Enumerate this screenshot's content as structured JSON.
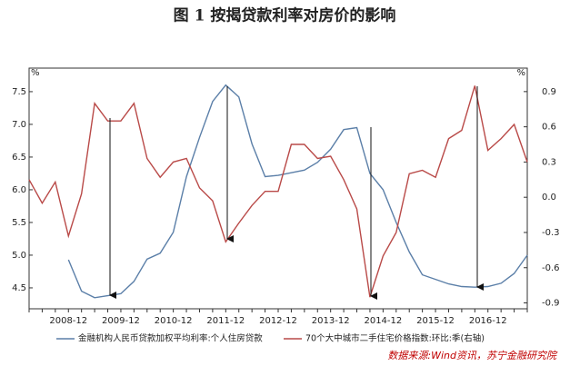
{
  "chart_data": {
    "type": "line",
    "title": "图 1  按揭贷款利率对房价的影响",
    "y_unit": "%",
    "y2_unit": "%",
    "source": "数据来源:Wind资讯，苏宁金融研究院",
    "categories": [
      null,
      null,
      null,
      "2008-12",
      null,
      null,
      null,
      "2009-12",
      null,
      null,
      null,
      "2010-12",
      null,
      null,
      null,
      "2011-12",
      null,
      null,
      null,
      "2012-12",
      null,
      null,
      null,
      "2013-12",
      null,
      null,
      null,
      "2014-12",
      null,
      null,
      null,
      "2015-12",
      null,
      null,
      null,
      "2016-12",
      null,
      null,
      null
    ],
    "ylim": [
      4.18,
      7.86
    ],
    "yticks": [
      4.5,
      {
        "value": 5,
        "label": "5.0"
      },
      5.5,
      {
        "value": 6,
        "label": "6.0"
      },
      6.5,
      {
        "value": 7,
        "label": "7.0"
      },
      7.5
    ],
    "y2lim": [
      -0.95,
      1.1
    ],
    "y2ticks": [
      -0.9,
      -0.6,
      -0.3,
      {
        "value": 0,
        "label": "0.0"
      },
      0.3,
      0.6,
      0.9
    ],
    "series": [
      {
        "name": "金融机构人民币贷款加权平均利率:个人住房贷款",
        "color": "#5b7fa8",
        "axis": "y",
        "values": [
          null,
          null,
          null,
          4.93,
          4.45,
          4.35,
          4.38,
          4.41,
          4.6,
          4.94,
          5.03,
          5.35,
          6.2,
          6.8,
          7.35,
          7.6,
          7.42,
          6.7,
          6.2,
          6.22,
          6.26,
          6.3,
          6.42,
          6.62,
          6.92,
          6.95,
          6.25,
          6.0,
          5.5,
          5.05,
          4.7,
          4.63,
          4.56,
          4.52,
          4.51,
          4.52,
          4.57,
          4.72,
          5.0
        ]
      },
      {
        "name": "70个大中城市二手住宅价格指数:环比:季(右轴)",
        "color": "#b94a48",
        "axis": "y2",
        "values": [
          0.15,
          -0.05,
          0.13,
          -0.33,
          0.03,
          0.8,
          0.65,
          0.65,
          0.8,
          0.33,
          0.17,
          0.3,
          0.33,
          0.08,
          -0.03,
          -0.38,
          -0.22,
          -0.07,
          0.05,
          0.05,
          0.45,
          0.45,
          0.33,
          0.35,
          0.15,
          -0.1,
          -0.85,
          -0.5,
          -0.3,
          0.2,
          0.23,
          0.17,
          0.5,
          0.57,
          0.95,
          0.4,
          0.5,
          0.62,
          0.3
        ]
      }
    ]
  }
}
